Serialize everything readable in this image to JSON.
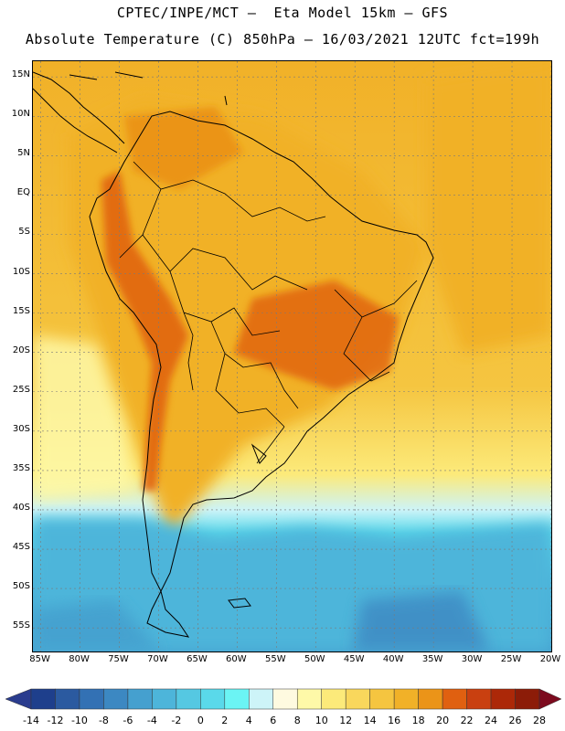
{
  "title": {
    "line1": "CPTEC/INPE/MCT —  Eta Model 15km — GFS",
    "line2": "Absolute Temperature (C) 850hPa — 16/03/2021 12UTC fct=199h"
  },
  "map": {
    "lon_range": [
      -86,
      -20
    ],
    "lat_range": [
      -58,
      17
    ],
    "lat_ticks": [
      {
        "value": 15,
        "label": "15N"
      },
      {
        "value": 10,
        "label": "10N"
      },
      {
        "value": 5,
        "label": "5N"
      },
      {
        "value": 0,
        "label": "EQ"
      },
      {
        "value": -5,
        "label": "5S"
      },
      {
        "value": -10,
        "label": "10S"
      },
      {
        "value": -15,
        "label": "15S"
      },
      {
        "value": -20,
        "label": "20S"
      },
      {
        "value": -25,
        "label": "25S"
      },
      {
        "value": -30,
        "label": "30S"
      },
      {
        "value": -35,
        "label": "35S"
      },
      {
        "value": -40,
        "label": "40S"
      },
      {
        "value": -45,
        "label": "45S"
      },
      {
        "value": -50,
        "label": "50S"
      },
      {
        "value": -55,
        "label": "55S"
      }
    ],
    "lon_ticks": [
      {
        "value": -85,
        "label": "85W"
      },
      {
        "value": -80,
        "label": "80W"
      },
      {
        "value": -75,
        "label": "75W"
      },
      {
        "value": -70,
        "label": "70W"
      },
      {
        "value": -65,
        "label": "65W"
      },
      {
        "value": -60,
        "label": "60W"
      },
      {
        "value": -55,
        "label": "55W"
      },
      {
        "value": -50,
        "label": "50W"
      },
      {
        "value": -45,
        "label": "45W"
      },
      {
        "value": -40,
        "label": "40W"
      },
      {
        "value": -35,
        "label": "35W"
      },
      {
        "value": -30,
        "label": "30W"
      },
      {
        "value": -25,
        "label": "25W"
      },
      {
        "value": -20,
        "label": "20W"
      }
    ]
  },
  "colorbar": {
    "labels": [
      "-14",
      "-12",
      "-10",
      "-8",
      "-6",
      "-4",
      "-2",
      "0",
      "2",
      "4",
      "6",
      "8",
      "10",
      "12",
      "14",
      "16",
      "18",
      "20",
      "22",
      "24",
      "26",
      "28"
    ],
    "colors": [
      "#1e3f8c",
      "#2b5aa0",
      "#3371b4",
      "#3c88c2",
      "#45a0cf",
      "#4db5da",
      "#55c8e2",
      "#5ad9ea",
      "#6bf4f4",
      "#cdf4f8",
      "#fefae0",
      "#fef9a8",
      "#fcea7a",
      "#f9d75c",
      "#f5c540",
      "#f1b128",
      "#eb9418",
      "#e06010",
      "#c94010",
      "#ac2808",
      "#8c1c08"
    ],
    "under_color": "#2a3c8e",
    "over_color": "#7c0a1e"
  }
}
